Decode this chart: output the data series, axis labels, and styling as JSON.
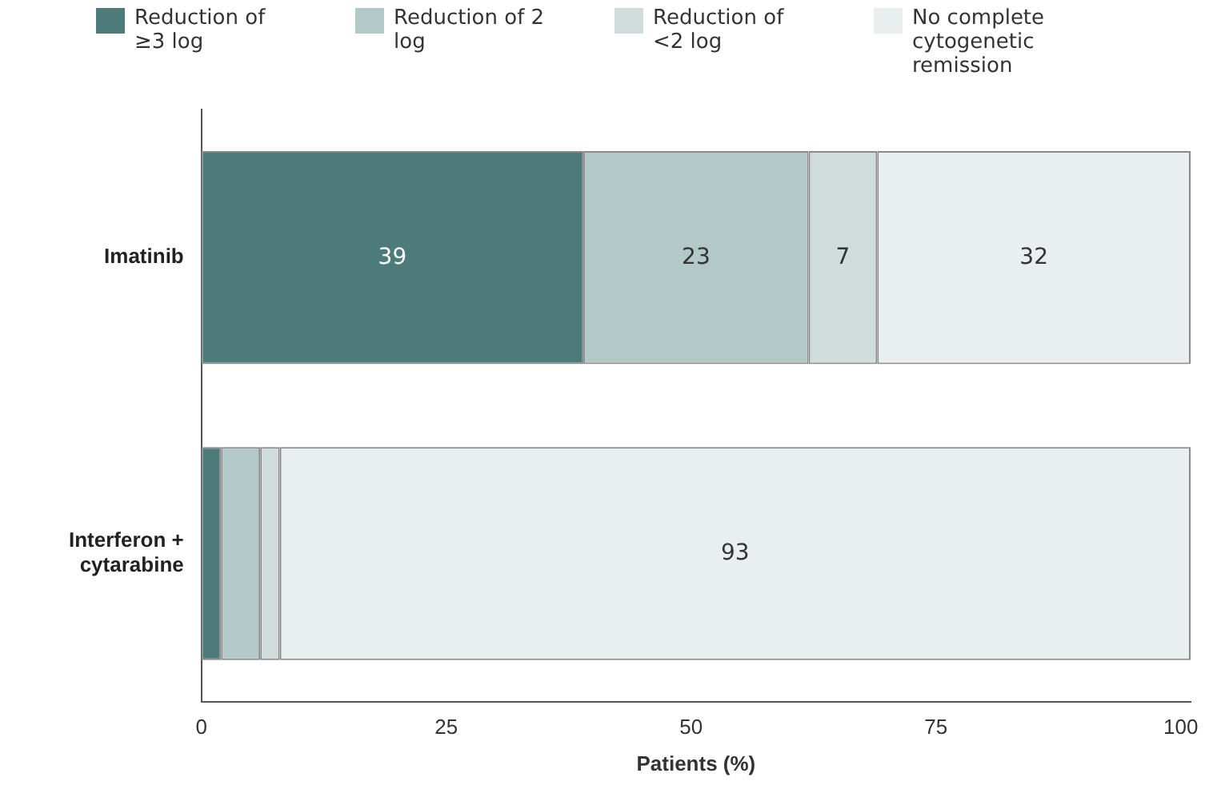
{
  "chart_data": {
    "type": "bar",
    "orientation": "horizontal",
    "stacked": true,
    "xlabel": "Patients (%)",
    "categories": [
      "Imatinib",
      "Interferon + cytarabine"
    ],
    "series": [
      {
        "name": "Reduction of ≥3 log",
        "color": "#4d7b79",
        "values": [
          39,
          2
        ],
        "value_labels": [
          "39",
          null
        ]
      },
      {
        "name": "Reduction of 2 log",
        "color": "#b3c9c8",
        "values": [
          23,
          4
        ],
        "value_labels": [
          "23",
          null
        ]
      },
      {
        "name": "Reduction of <2 log",
        "color": "#d0dddc",
        "values": [
          7,
          2
        ],
        "value_labels": [
          "7",
          null
        ]
      },
      {
        "name": "No complete cytogenetic remission",
        "color": "#e9efee",
        "values": [
          32,
          93
        ],
        "value_labels": [
          "32",
          "93"
        ]
      }
    ],
    "xlim": [
      0,
      101
    ],
    "xticks": [
      0,
      25,
      50,
      75,
      100
    ],
    "grid": false,
    "legend": "top"
  }
}
